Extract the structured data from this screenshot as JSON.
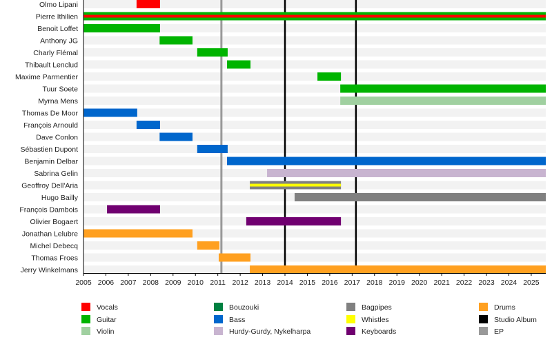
{
  "chart_data": {
    "type": "timeline",
    "title": "",
    "xlim": [
      2005,
      2025.65
    ],
    "x_ticks": [
      2005,
      2006,
      2007,
      2008,
      2009,
      2010,
      2011,
      2012,
      2013,
      2014,
      2015,
      2016,
      2017,
      2018,
      2019,
      2020,
      2021,
      2022,
      2023,
      2024,
      2025
    ],
    "grid": false,
    "colors": {
      "Vocals": "#ff0000",
      "Guitar": "#00b400",
      "Violin": "#a0d0a0",
      "Bouzouki": "#008040",
      "Bass": "#0066cc",
      "Hurdy-Gurdy, Nykelharpa": "#c8b4d0",
      "Bagpipes": "#808080",
      "Whistles": "#ffff00",
      "Keyboards": "#700070",
      "Drums": "#ffa020",
      "Studio Album": "#000000",
      "EP": "#999999"
    },
    "members": [
      {
        "name": "Olmo Lipani",
        "bars": [
          {
            "role": "Vocals",
            "start": 2007.37,
            "end": 2008.42
          }
        ]
      },
      {
        "name": "Pierre Ithilien",
        "bars": [
          {
            "role": "Guitar",
            "start": 2005,
            "end": 2025.65
          },
          {
            "role": "Vocals",
            "start": 2005,
            "end": 2025.65,
            "inner": true
          }
        ]
      },
      {
        "name": "Benoit Loffet",
        "bars": [
          {
            "role": "Guitar",
            "start": 2005,
            "end": 2008.42
          }
        ]
      },
      {
        "name": "Anthony JG",
        "bars": [
          {
            "role": "Guitar",
            "start": 2008.4,
            "end": 2009.87
          }
        ]
      },
      {
        "name": "Charly Flémal",
        "bars": [
          {
            "role": "Guitar",
            "start": 2010.08,
            "end": 2011.44
          }
        ]
      },
      {
        "name": "Thibault Lenclud",
        "bars": [
          {
            "role": "Guitar",
            "start": 2011.41,
            "end": 2012.46
          }
        ]
      },
      {
        "name": "Maxime Parmentier",
        "bars": [
          {
            "role": "Guitar",
            "start": 2015.45,
            "end": 2016.5
          }
        ]
      },
      {
        "name": "Tuur Soete",
        "bars": [
          {
            "role": "Guitar",
            "start": 2016.47,
            "end": 2025.65
          }
        ]
      },
      {
        "name": "Myrna Mens",
        "bars": [
          {
            "role": "Violin",
            "start": 2016.47,
            "end": 2025.65
          }
        ]
      },
      {
        "name": "Thomas De Moor",
        "bars": [
          {
            "role": "Bass",
            "start": 2005,
            "end": 2007.4
          }
        ]
      },
      {
        "name": "François Arnould",
        "bars": [
          {
            "role": "Bass",
            "start": 2007.37,
            "end": 2008.42
          }
        ]
      },
      {
        "name": "Dave Conlon",
        "bars": [
          {
            "role": "Bass",
            "start": 2008.4,
            "end": 2009.87
          }
        ]
      },
      {
        "name": "Sébastien Dupont",
        "bars": [
          {
            "role": "Bass",
            "start": 2010.08,
            "end": 2011.44
          }
        ]
      },
      {
        "name": "Benjamin Delbar",
        "bars": [
          {
            "role": "Bass",
            "start": 2011.41,
            "end": 2025.65
          }
        ]
      },
      {
        "name": "Sabrina Gelin",
        "bars": [
          {
            "role": "Hurdy-Gurdy, Nykelharpa",
            "start": 2013.2,
            "end": 2025.65
          }
        ]
      },
      {
        "name": "Geoffroy Dell'Aria",
        "bars": [
          {
            "role": "Bagpipes",
            "start": 2012.43,
            "end": 2016.5
          },
          {
            "role": "Whistles",
            "start": 2012.43,
            "end": 2016.5,
            "inner": true
          }
        ]
      },
      {
        "name": "Hugo Bailly",
        "bars": [
          {
            "role": "Bagpipes",
            "start": 2014.43,
            "end": 2025.65
          }
        ]
      },
      {
        "name": "François Dambois",
        "bars": [
          {
            "role": "Keyboards",
            "start": 2006.05,
            "end": 2008.42
          }
        ]
      },
      {
        "name": "Olivier Bogaert",
        "bars": [
          {
            "role": "Keyboards",
            "start": 2012.27,
            "end": 2016.5
          }
        ]
      },
      {
        "name": "Jonathan Lelubre",
        "bars": [
          {
            "role": "Drums",
            "start": 2005,
            "end": 2009.87
          }
        ]
      },
      {
        "name": "Michel Debecq",
        "bars": [
          {
            "role": "Drums",
            "start": 2010.08,
            "end": 2011.07
          }
        ]
      },
      {
        "name": "Thomas Froes",
        "bars": [
          {
            "role": "Drums",
            "start": 2011.04,
            "end": 2012.46
          }
        ]
      },
      {
        "name": "Jerry Winkelmans",
        "bars": [
          {
            "role": "Drums",
            "start": 2012.43,
            "end": 2025.65
          }
        ]
      }
    ],
    "releases": [
      {
        "type": "EP",
        "year": 2011.16
      },
      {
        "type": "Studio Album",
        "year": 2014.0
      },
      {
        "type": "Studio Album",
        "year": 2017.17
      }
    ],
    "legend_placement": "bottom",
    "legend": [
      "Vocals",
      "Bouzouki",
      "Bagpipes",
      "Drums",
      "Guitar",
      "Bass",
      "Whistles",
      "Studio Album",
      "Violin",
      "Hurdy-Gurdy, Nykelharpa",
      "Keyboards",
      "EP"
    ]
  }
}
